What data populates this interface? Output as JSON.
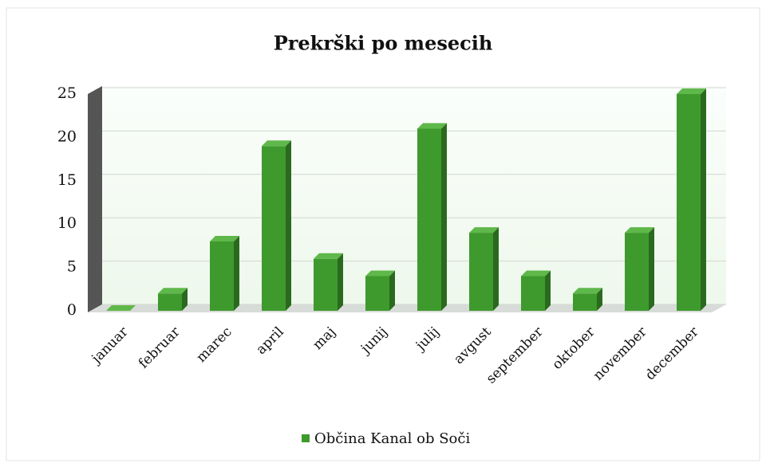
{
  "chart_data": {
    "type": "bar",
    "title": "Prekrški po mesecih",
    "categories": [
      "januar",
      "februar",
      "marec",
      "april",
      "maj",
      "junij",
      "julij",
      "avgust",
      "september",
      "oktober",
      "november",
      "december"
    ],
    "series": [
      {
        "name": "Občina Kanal ob Soči",
        "color": "#3f9a2e",
        "values": [
          0,
          2,
          8,
          19,
          6,
          4,
          21,
          9,
          4,
          2,
          9,
          25
        ]
      }
    ],
    "ylim": [
      0,
      25
    ],
    "yticks": [
      0,
      5,
      10,
      15,
      20,
      25
    ],
    "grid": true,
    "legend": "bottom"
  }
}
